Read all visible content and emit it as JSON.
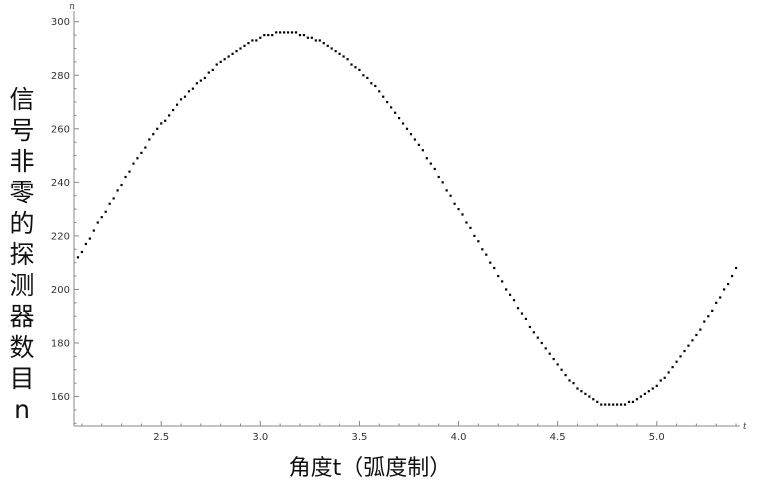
{
  "chart_data": {
    "type": "scatter",
    "title": "",
    "xlabel": "角度t（弧度制）",
    "ylabel": "信号非零的探测器数目n",
    "x_axis_var": "t",
    "y_axis_var": "n",
    "xlim": [
      2.06,
      5.42
    ],
    "ylim": [
      149,
      304
    ],
    "xticks": [
      2.5,
      3.0,
      3.5,
      4.0,
      4.5,
      5.0
    ],
    "yticks": [
      160,
      180,
      200,
      220,
      240,
      260,
      280,
      300
    ],
    "xtick_labels": [
      "2.5",
      "3.0",
      "3.5",
      "4.0",
      "4.5",
      "5.0"
    ],
    "ytick_labels": [
      "160",
      "180",
      "200",
      "220",
      "240",
      "260",
      "280",
      "300"
    ],
    "grid": false,
    "marker_color": "#000000",
    "points": [
      [
        2.08,
        212
      ],
      [
        2.1,
        214
      ],
      [
        2.12,
        217
      ],
      [
        2.14,
        219
      ],
      [
        2.16,
        222
      ],
      [
        2.18,
        225
      ],
      [
        2.2,
        227
      ],
      [
        2.22,
        229
      ],
      [
        2.24,
        232
      ],
      [
        2.26,
        234
      ],
      [
        2.28,
        237
      ],
      [
        2.3,
        239
      ],
      [
        2.32,
        242
      ],
      [
        2.34,
        244
      ],
      [
        2.36,
        247
      ],
      [
        2.38,
        249
      ],
      [
        2.4,
        251
      ],
      [
        2.42,
        253
      ],
      [
        2.44,
        256
      ],
      [
        2.46,
        258
      ],
      [
        2.48,
        260
      ],
      [
        2.5,
        262
      ],
      [
        2.52,
        263
      ],
      [
        2.54,
        265
      ],
      [
        2.56,
        267
      ],
      [
        2.58,
        269
      ],
      [
        2.6,
        271
      ],
      [
        2.62,
        272
      ],
      [
        2.64,
        274
      ],
      [
        2.66,
        275
      ],
      [
        2.68,
        277
      ],
      [
        2.7,
        278
      ],
      [
        2.72,
        279
      ],
      [
        2.74,
        281
      ],
      [
        2.76,
        282
      ],
      [
        2.78,
        284
      ],
      [
        2.8,
        285
      ],
      [
        2.82,
        286
      ],
      [
        2.84,
        287
      ],
      [
        2.86,
        288
      ],
      [
        2.88,
        289
      ],
      [
        2.9,
        290
      ],
      [
        2.92,
        291
      ],
      [
        2.94,
        292
      ],
      [
        2.96,
        293
      ],
      [
        2.98,
        293
      ],
      [
        3.0,
        294
      ],
      [
        3.02,
        295
      ],
      [
        3.04,
        295
      ],
      [
        3.06,
        295
      ],
      [
        3.08,
        296
      ],
      [
        3.1,
        296
      ],
      [
        3.12,
        296
      ],
      [
        3.14,
        296
      ],
      [
        3.16,
        296
      ],
      [
        3.18,
        296
      ],
      [
        3.2,
        295
      ],
      [
        3.22,
        295
      ],
      [
        3.24,
        294
      ],
      [
        3.26,
        294
      ],
      [
        3.28,
        293
      ],
      [
        3.3,
        293
      ],
      [
        3.32,
        292
      ],
      [
        3.34,
        291
      ],
      [
        3.36,
        290
      ],
      [
        3.38,
        289
      ],
      [
        3.4,
        288
      ],
      [
        3.42,
        287
      ],
      [
        3.44,
        286
      ],
      [
        3.46,
        284
      ],
      [
        3.48,
        283
      ],
      [
        3.5,
        282
      ],
      [
        3.52,
        280
      ],
      [
        3.54,
        279
      ],
      [
        3.56,
        277
      ],
      [
        3.58,
        276
      ],
      [
        3.6,
        274
      ],
      [
        3.62,
        272
      ],
      [
        3.64,
        270
      ],
      [
        3.66,
        268
      ],
      [
        3.68,
        266
      ],
      [
        3.7,
        264
      ],
      [
        3.72,
        262
      ],
      [
        3.74,
        260
      ],
      [
        3.76,
        258
      ],
      [
        3.78,
        256
      ],
      [
        3.8,
        254
      ],
      [
        3.82,
        252
      ],
      [
        3.84,
        249
      ],
      [
        3.86,
        247
      ],
      [
        3.88,
        245
      ],
      [
        3.9,
        242
      ],
      [
        3.92,
        240
      ],
      [
        3.94,
        237
      ],
      [
        3.96,
        235
      ],
      [
        3.98,
        232
      ],
      [
        4.0,
        230
      ],
      [
        4.02,
        228
      ],
      [
        4.04,
        225
      ],
      [
        4.06,
        223
      ],
      [
        4.08,
        220
      ],
      [
        4.1,
        218
      ],
      [
        4.12,
        215
      ],
      [
        4.14,
        213
      ],
      [
        4.16,
        210
      ],
      [
        4.18,
        208
      ],
      [
        4.2,
        205
      ],
      [
        4.22,
        203
      ],
      [
        4.24,
        200
      ],
      [
        4.26,
        198
      ],
      [
        4.28,
        196
      ],
      [
        4.3,
        193
      ],
      [
        4.32,
        191
      ],
      [
        4.34,
        189
      ],
      [
        4.36,
        186
      ],
      [
        4.38,
        184
      ],
      [
        4.4,
        182
      ],
      [
        4.42,
        180
      ],
      [
        4.44,
        178
      ],
      [
        4.46,
        176
      ],
      [
        4.48,
        174
      ],
      [
        4.5,
        172
      ],
      [
        4.52,
        170
      ],
      [
        4.54,
        168
      ],
      [
        4.56,
        166
      ],
      [
        4.58,
        165
      ],
      [
        4.6,
        163
      ],
      [
        4.62,
        162
      ],
      [
        4.64,
        161
      ],
      [
        4.66,
        160
      ],
      [
        4.68,
        159
      ],
      [
        4.7,
        158
      ],
      [
        4.72,
        157
      ],
      [
        4.74,
        157
      ],
      [
        4.76,
        157
      ],
      [
        4.78,
        157
      ],
      [
        4.8,
        157
      ],
      [
        4.82,
        157
      ],
      [
        4.84,
        157
      ],
      [
        4.86,
        158
      ],
      [
        4.88,
        158
      ],
      [
        4.9,
        159
      ],
      [
        4.92,
        160
      ],
      [
        4.94,
        161
      ],
      [
        4.96,
        162
      ],
      [
        4.98,
        163
      ],
      [
        5.0,
        164
      ],
      [
        5.02,
        166
      ],
      [
        5.04,
        167
      ],
      [
        5.06,
        169
      ],
      [
        5.08,
        171
      ],
      [
        5.1,
        173
      ],
      [
        5.12,
        175
      ],
      [
        5.14,
        177
      ],
      [
        5.16,
        179
      ],
      [
        5.18,
        181
      ],
      [
        5.2,
        183
      ],
      [
        5.22,
        185
      ],
      [
        5.24,
        188
      ],
      [
        5.26,
        190
      ],
      [
        5.28,
        192
      ],
      [
        5.3,
        195
      ],
      [
        5.32,
        197
      ],
      [
        5.34,
        200
      ],
      [
        5.36,
        202
      ],
      [
        5.38,
        205
      ],
      [
        5.4,
        208
      ]
    ]
  }
}
